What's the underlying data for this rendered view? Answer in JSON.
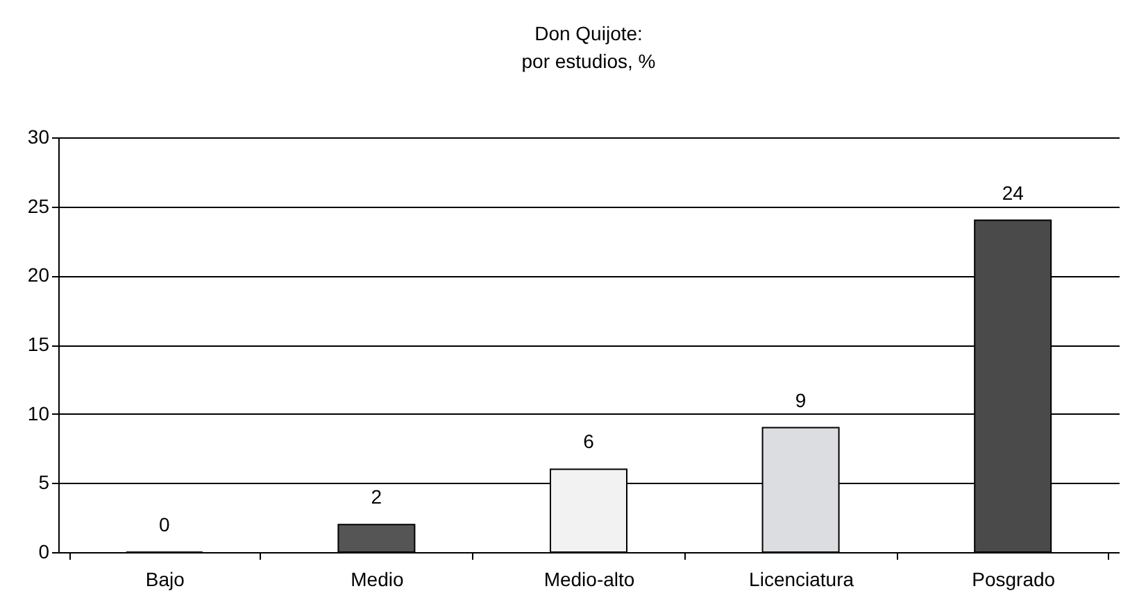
{
  "chart_data": {
    "type": "bar",
    "title": "Don Quijote:\npor estudios, %",
    "categories": [
      "Bajo",
      "Medio",
      "Medio-alto",
      "Licenciatura",
      "Posgrado"
    ],
    "values": [
      0,
      2,
      6,
      9,
      24
    ],
    "colors": [
      "#000000",
      "#555555",
      "#f2f2f2",
      "#dcdde0",
      "#4a4a4a"
    ],
    "ylim": [
      0,
      30
    ],
    "yticks": [
      0,
      5,
      10,
      15,
      20,
      25,
      30
    ],
    "grid": "y",
    "data_labels": true
  }
}
